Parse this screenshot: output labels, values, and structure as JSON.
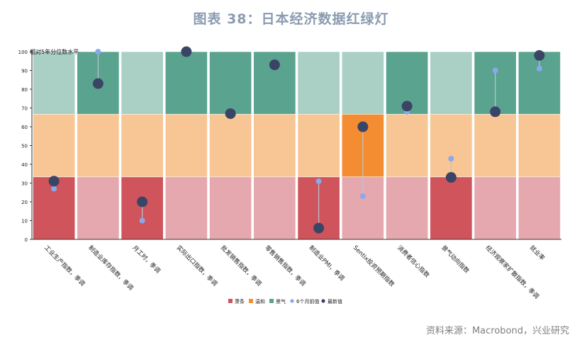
{
  "title": "图表 38：日本经济数据红绿灯",
  "source": "资料来源：Macrobond，兴业研究",
  "chart_data": {
    "type": "bar",
    "title": "图表 38：日本经济数据红绿灯",
    "corner_label": "相对5年分位数水平",
    "ylim": [
      0,
      100
    ],
    "yticks": [
      0,
      10,
      20,
      30,
      40,
      50,
      60,
      70,
      80,
      90,
      100
    ],
    "zones": [
      {
        "name": "萧条",
        "from": 0,
        "to": 33.3
      },
      {
        "name": "温和",
        "from": 33.3,
        "to": 66.7
      },
      {
        "name": "景气",
        "from": 66.7,
        "to": 100
      }
    ],
    "categories": [
      "工业生产指数，季调",
      "制造业库存指数，季调",
      "月工时，季调",
      "实际出口指数，季调",
      "批发销售指数，季调",
      "零售销售指数，季调",
      "制造业PMI，季调",
      "Sentix投资预期指数",
      "消费者信心指数",
      "景气动向指数",
      "经济观察家扩散指数，季调",
      "就业率"
    ],
    "series": [
      {
        "name": "6个月前值",
        "values": [
          27,
          100,
          10,
          100,
          67,
          93,
          31,
          23,
          68,
          43,
          90,
          91
        ]
      },
      {
        "name": "最新值",
        "values": [
          31,
          83,
          20,
          100,
          67,
          93,
          6,
          60,
          71,
          33,
          68,
          98
        ]
      }
    ],
    "legend": {
      "position": "bottom",
      "items": [
        "萧条",
        "温和",
        "景气",
        "6个月前值",
        "最新值"
      ]
    },
    "colors": {
      "low_dim": "#e5a8ae",
      "low_active": "#cf545c",
      "mid_dim": "#f8c594",
      "mid_active": "#f48c31",
      "high_dim": "#aacfc5",
      "high_active": "#59a38f",
      "prev_marker": "#8aa8ec",
      "latest_marker": "#3a4566",
      "connector": "#bcc4cf"
    }
  }
}
